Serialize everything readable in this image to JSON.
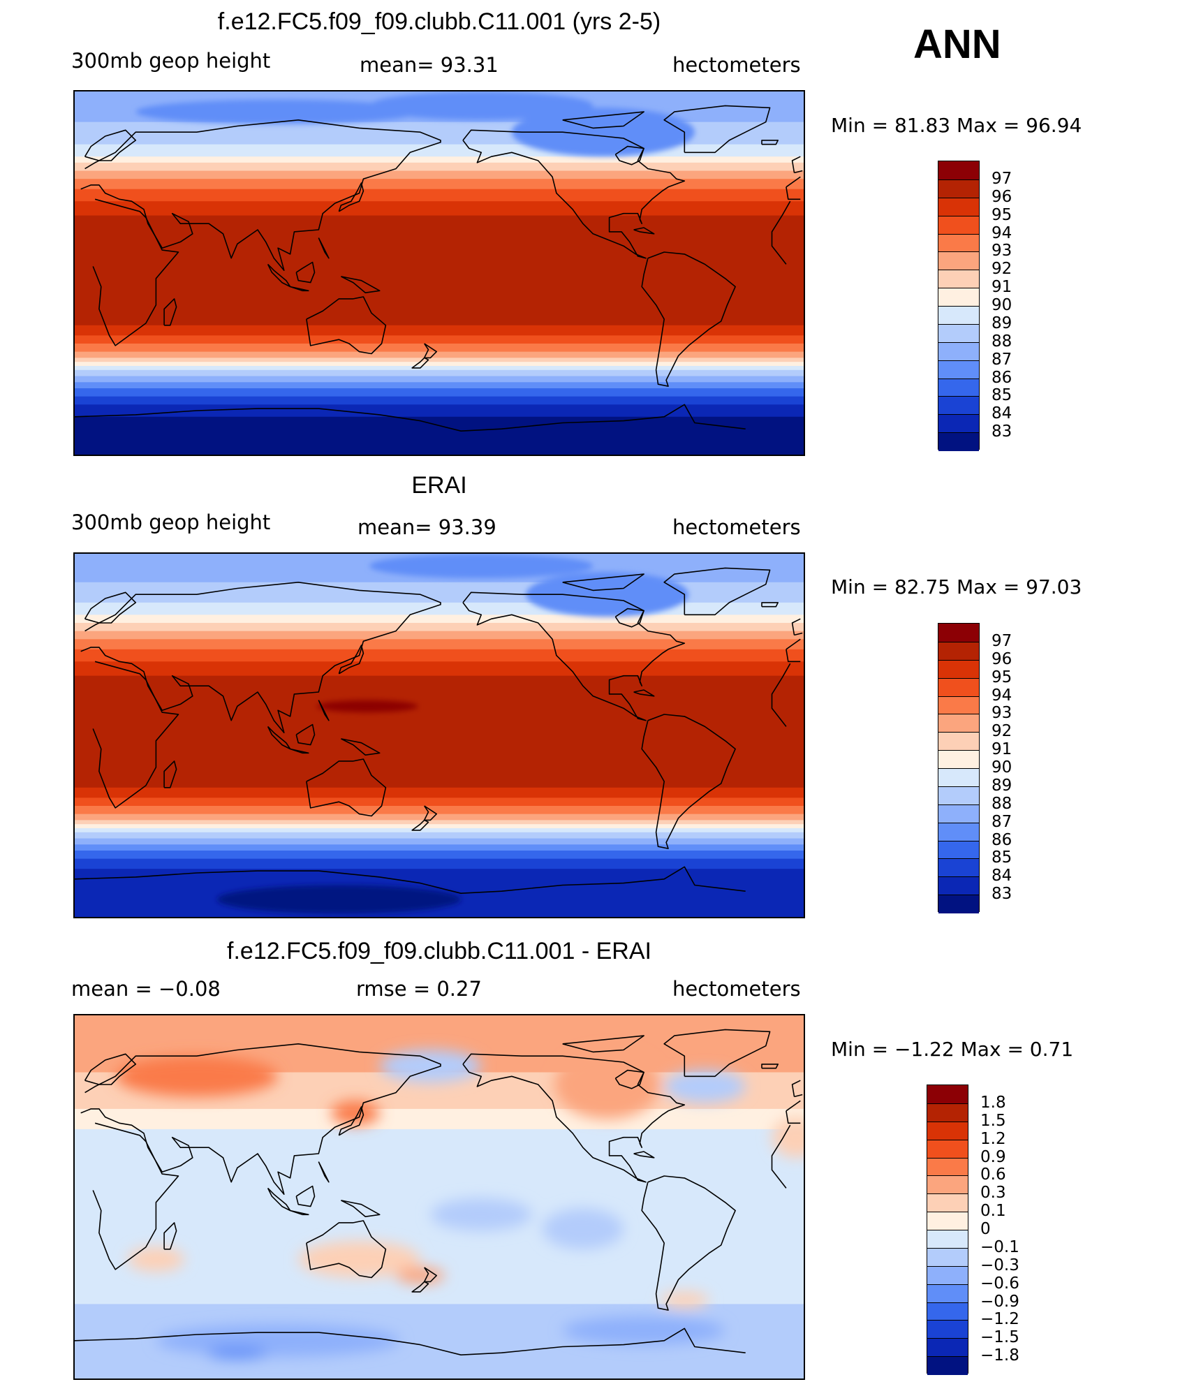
{
  "season": "ANN",
  "panels": [
    {
      "title": "f.e12.FC5.f09_f09.clubb.C11.001 (yrs 2-5)",
      "left_label": "300mb geop height",
      "center_label": "mean=   93.31",
      "right_label": "hectometers",
      "minmax": "Min =    81.83  Max =    96.94",
      "min": 81.83,
      "max": 96.94,
      "colorbar": {
        "labels": [
          "97",
          "96",
          "95",
          "94",
          "93",
          "92",
          "91",
          "90",
          "89",
          "88",
          "87",
          "86",
          "85",
          "84",
          "83"
        ],
        "colors": [
          "#8c0005",
          "#b42303",
          "#d93306",
          "#f0501d",
          "#fa7a48",
          "#fba57e",
          "#fdd0b6",
          "#fff0e1",
          "#d7e8fb",
          "#b3ccfb",
          "#8eb0fb",
          "#608ef8",
          "#3567ec",
          "#1a43d4",
          "#0b27b5",
          "#011281"
        ]
      },
      "field": {
        "bands": [
          {
            "lat_north": 90,
            "lat_south": 75,
            "color": "#8eb0fb"
          },
          {
            "lat_north": 75,
            "lat_south": 64,
            "color": "#b3ccfb"
          },
          {
            "lat_north": 64,
            "lat_south": 58,
            "color": "#d7e8fb"
          },
          {
            "lat_north": 58,
            "lat_south": 55,
            "color": "#fff0e1"
          },
          {
            "lat_north": 55,
            "lat_south": 51,
            "color": "#fdd0b6"
          },
          {
            "lat_north": 51,
            "lat_south": 47,
            "color": "#fba57e"
          },
          {
            "lat_north": 47,
            "lat_south": 42,
            "color": "#fa7a48"
          },
          {
            "lat_north": 42,
            "lat_south": 36,
            "color": "#f0501d"
          },
          {
            "lat_north": 36,
            "lat_south": 29,
            "color": "#d93306"
          },
          {
            "lat_north": 29,
            "lat_south": -25,
            "color": "#b42303"
          },
          {
            "lat_north": -25,
            "lat_south": -30,
            "color": "#d93306"
          },
          {
            "lat_north": -30,
            "lat_south": -34,
            "color": "#f0501d"
          },
          {
            "lat_north": -34,
            "lat_south": -38,
            "color": "#fa7a48"
          },
          {
            "lat_north": -38,
            "lat_south": -41,
            "color": "#fba57e"
          },
          {
            "lat_north": -41,
            "lat_south": -43,
            "color": "#fdd0b6"
          },
          {
            "lat_north": -43,
            "lat_south": -45,
            "color": "#fff0e1"
          },
          {
            "lat_north": -45,
            "lat_south": -47,
            "color": "#d7e8fb"
          },
          {
            "lat_north": -47,
            "lat_south": -50,
            "color": "#b3ccfb"
          },
          {
            "lat_north": -50,
            "lat_south": -53,
            "color": "#8eb0fb"
          },
          {
            "lat_north": -53,
            "lat_south": -56,
            "color": "#608ef8"
          },
          {
            "lat_north": -56,
            "lat_south": -60,
            "color": "#3567ec"
          },
          {
            "lat_north": -60,
            "lat_south": -64,
            "color": "#1a43d4"
          },
          {
            "lat_north": -64,
            "lat_south": -70,
            "color": "#0b27b5"
          },
          {
            "lat_north": -70,
            "lat_south": -90,
            "color": "#011281"
          }
        ],
        "blobs": [
          {
            "lon": 200,
            "lat": 83,
            "rx": 55,
            "ry": 7,
            "color": "#608ef8"
          },
          {
            "lon": 260,
            "lat": 70,
            "rx": 45,
            "ry": 12,
            "color": "#608ef8"
          },
          {
            "lon": 100,
            "lat": 80,
            "rx": 70,
            "ry": 6,
            "color": "#608ef8"
          }
        ]
      }
    },
    {
      "title": "ERAI",
      "left_label": "300mb geop height",
      "center_label": "mean=   93.39",
      "right_label": "hectometers",
      "minmax": "Min =    82.75  Max =    97.03",
      "min": 82.75,
      "max": 97.03,
      "colorbar": {
        "labels": [
          "97",
          "96",
          "95",
          "94",
          "93",
          "92",
          "91",
          "90",
          "89",
          "88",
          "87",
          "86",
          "85",
          "84",
          "83"
        ],
        "colors": [
          "#8c0005",
          "#b42303",
          "#d93306",
          "#f0501d",
          "#fa7a48",
          "#fba57e",
          "#fdd0b6",
          "#fff0e1",
          "#d7e8fb",
          "#b3ccfb",
          "#8eb0fb",
          "#608ef8",
          "#3567ec",
          "#1a43d4",
          "#0b27b5",
          "#011281"
        ]
      },
      "field": {
        "bands": [
          {
            "lat_north": 90,
            "lat_south": 76,
            "color": "#8eb0fb"
          },
          {
            "lat_north": 76,
            "lat_south": 66,
            "color": "#b3ccfb"
          },
          {
            "lat_north": 66,
            "lat_south": 60,
            "color": "#d7e8fb"
          },
          {
            "lat_north": 60,
            "lat_south": 56,
            "color": "#fff0e1"
          },
          {
            "lat_north": 56,
            "lat_south": 52,
            "color": "#fdd0b6"
          },
          {
            "lat_north": 52,
            "lat_south": 48,
            "color": "#fba57e"
          },
          {
            "lat_north": 48,
            "lat_south": 43,
            "color": "#fa7a48"
          },
          {
            "lat_north": 43,
            "lat_south": 37,
            "color": "#f0501d"
          },
          {
            "lat_north": 37,
            "lat_south": 30,
            "color": "#d93306"
          },
          {
            "lat_north": 30,
            "lat_south": -25,
            "color": "#b42303"
          },
          {
            "lat_north": -25,
            "lat_south": -30,
            "color": "#d93306"
          },
          {
            "lat_north": -30,
            "lat_south": -34,
            "color": "#f0501d"
          },
          {
            "lat_north": -34,
            "lat_south": -38,
            "color": "#fa7a48"
          },
          {
            "lat_north": -38,
            "lat_south": -41,
            "color": "#fba57e"
          },
          {
            "lat_north": -41,
            "lat_south": -43,
            "color": "#fdd0b6"
          },
          {
            "lat_north": -43,
            "lat_south": -45,
            "color": "#fff0e1"
          },
          {
            "lat_north": -45,
            "lat_south": -47,
            "color": "#d7e8fb"
          },
          {
            "lat_north": -47,
            "lat_south": -50,
            "color": "#b3ccfb"
          },
          {
            "lat_north": -50,
            "lat_south": -53,
            "color": "#8eb0fb"
          },
          {
            "lat_north": -53,
            "lat_south": -56,
            "color": "#608ef8"
          },
          {
            "lat_north": -56,
            "lat_south": -60,
            "color": "#3567ec"
          },
          {
            "lat_north": -60,
            "lat_south": -65,
            "color": "#1a43d4"
          },
          {
            "lat_north": -65,
            "lat_south": -72,
            "color": "#0b27b5"
          },
          {
            "lat_north": -72,
            "lat_south": -90,
            "color": "#0b27b5"
          }
        ],
        "blobs": [
          {
            "lon": 144,
            "lat": 15,
            "rx": 25,
            "ry": 3,
            "color": "#8c0005"
          },
          {
            "lon": 200,
            "lat": 84,
            "rx": 55,
            "ry": 6,
            "color": "#608ef8"
          },
          {
            "lon": 262,
            "lat": 70,
            "rx": 40,
            "ry": 11,
            "color": "#608ef8"
          },
          {
            "lon": 130,
            "lat": -80,
            "rx": 60,
            "ry": 7,
            "color": "#011281"
          }
        ]
      }
    },
    {
      "title": "f.e12.FC5.f09_f09.clubb.C11.001 - ERAI",
      "left_label": "mean =    −0.08",
      "center_label": "rmse =     0.27",
      "right_label": "hectometers",
      "minmax": "Min =    −1.22  Max =     0.71",
      "min": -1.22,
      "max": 0.71,
      "colorbar": {
        "labels": [
          "1.8",
          "1.5",
          "1.2",
          "0.9",
          "0.6",
          "0.3",
          "0.1",
          "0",
          "−0.1",
          "−0.3",
          "−0.6",
          "−0.9",
          "−1.2",
          "−1.5",
          "−1.8"
        ],
        "colors": [
          "#8c0005",
          "#b42303",
          "#d93306",
          "#f0501d",
          "#fa7a48",
          "#fba57e",
          "#fdd0b6",
          "#fff0e1",
          "#d7e8fb",
          "#b3ccfb",
          "#8eb0fb",
          "#608ef8",
          "#3567ec",
          "#1a43d4",
          "#0b27b5",
          "#011281"
        ]
      },
      "field": {
        "bands": [
          {
            "lat_north": 90,
            "lat_south": 62,
            "color": "#fba57e"
          },
          {
            "lat_north": 62,
            "lat_south": 44,
            "color": "#fdd0b6"
          },
          {
            "lat_north": 44,
            "lat_south": 34,
            "color": "#fff0e1"
          },
          {
            "lat_north": 34,
            "lat_south": -52,
            "color": "#d7e8fb"
          },
          {
            "lat_north": -52,
            "lat_south": -90,
            "color": "#b3ccfb"
          }
        ],
        "blobs": [
          {
            "lon": 60,
            "lat": 60,
            "rx": 40,
            "ry": 10,
            "color": "#fa7a48"
          },
          {
            "lon": 138,
            "lat": 42,
            "rx": 12,
            "ry": 6,
            "color": "#fa7a48"
          },
          {
            "lon": 262,
            "lat": 54,
            "rx": 16,
            "ry": 10,
            "color": "#fa7a48"
          },
          {
            "lon": 262,
            "lat": 56,
            "rx": 26,
            "ry": 17,
            "color": "#fba57e"
          },
          {
            "lon": 175,
            "lat": 65,
            "rx": 25,
            "ry": 8,
            "color": "#b3ccfb"
          },
          {
            "lon": 310,
            "lat": 55,
            "rx": 20,
            "ry": 8,
            "color": "#b3ccfb"
          },
          {
            "lon": 355,
            "lat": 30,
            "rx": 12,
            "ry": 10,
            "color": "#fdd0b6"
          },
          {
            "lon": 140,
            "lat": -30,
            "rx": 30,
            "ry": 9,
            "color": "#fdd0b6"
          },
          {
            "lon": 170,
            "lat": -38,
            "rx": 12,
            "ry": 4,
            "color": "#fba57e"
          },
          {
            "lon": 40,
            "lat": -30,
            "rx": 14,
            "ry": 6,
            "color": "#fdd0b6"
          },
          {
            "lon": 300,
            "lat": -50,
            "rx": 12,
            "ry": 4,
            "color": "#fdd0b6"
          },
          {
            "lon": 200,
            "lat": -8,
            "rx": 25,
            "ry": 8,
            "color": "#b3ccfb"
          },
          {
            "lon": 250,
            "lat": -15,
            "rx": 20,
            "ry": 10,
            "color": "#b3ccfb"
          },
          {
            "lon": 100,
            "lat": -70,
            "rx": 60,
            "ry": 8,
            "color": "#8eb0fb"
          },
          {
            "lon": 80,
            "lat": -76,
            "rx": 15,
            "ry": 3,
            "color": "#608ef8"
          },
          {
            "lon": 280,
            "lat": -65,
            "rx": 40,
            "ry": 7,
            "color": "#8eb0fb"
          }
        ]
      }
    }
  ]
}
